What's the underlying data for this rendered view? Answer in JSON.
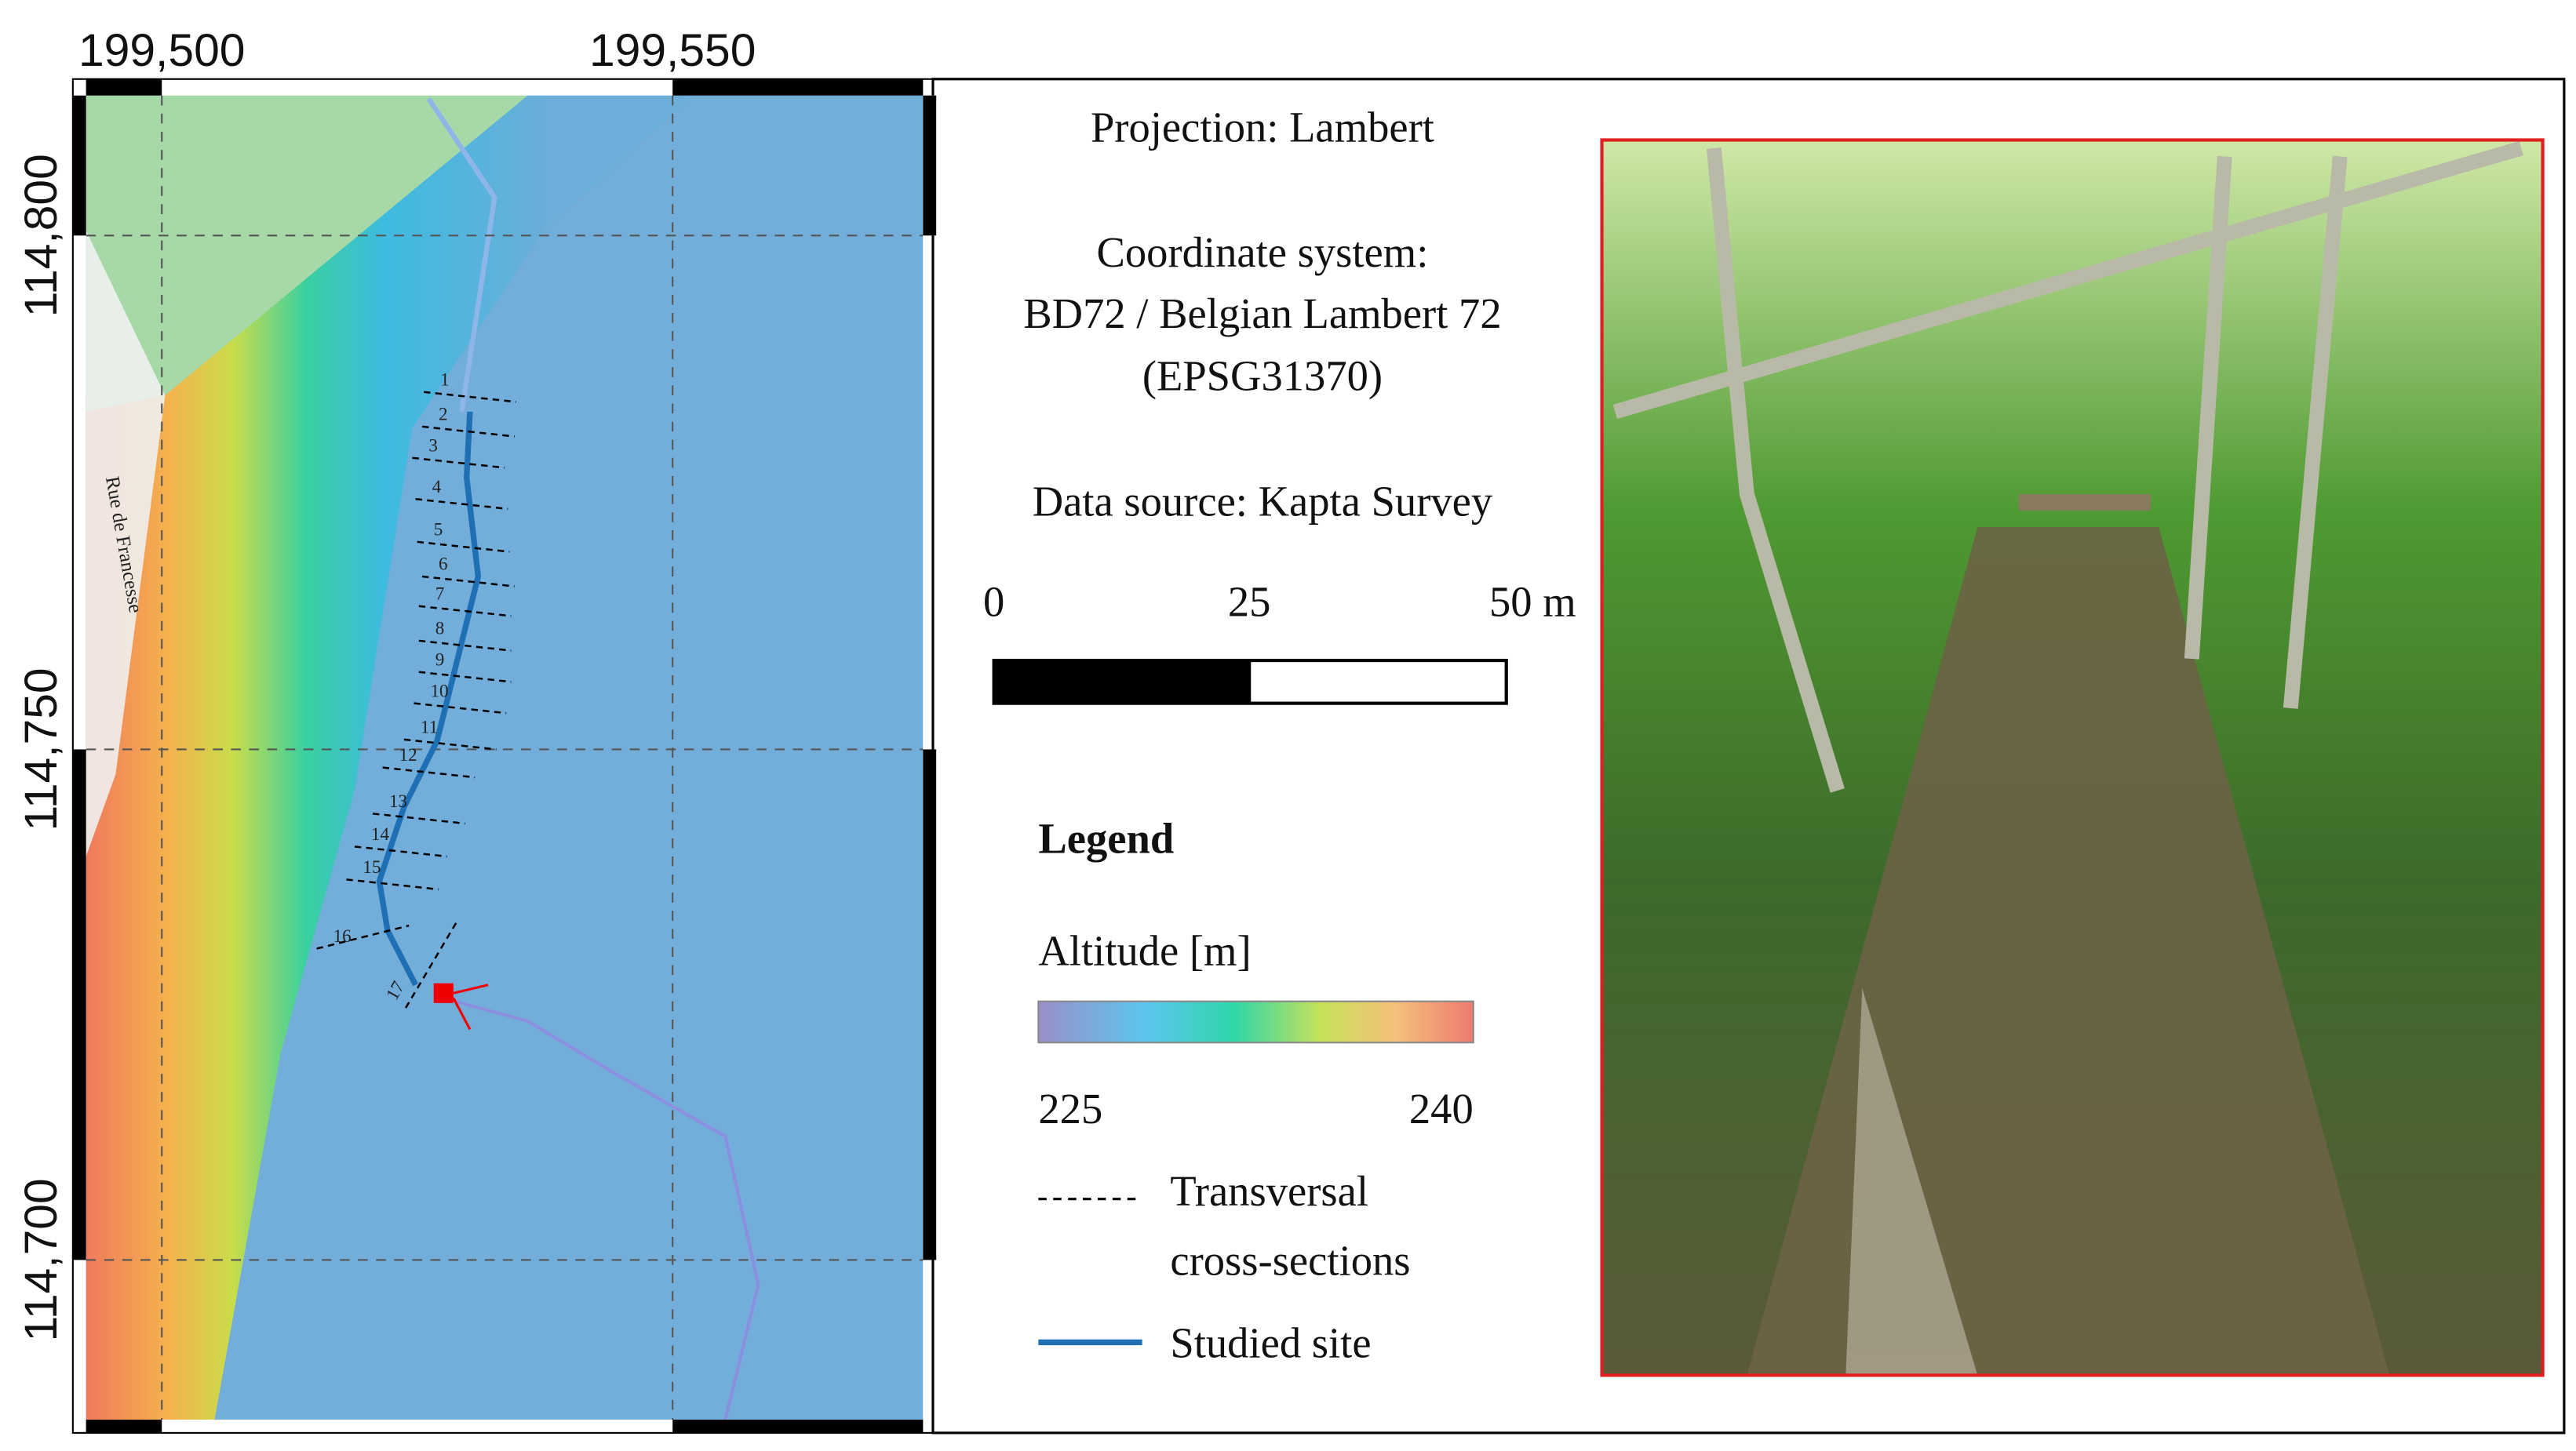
{
  "map": {
    "x_labels": [
      "199,500",
      "199,550"
    ],
    "y_labels": [
      "114,800",
      "114,750",
      "114,700"
    ],
    "street": "Rue de Francesse",
    "sections": [
      "1",
      "2",
      "3",
      "4",
      "5",
      "6",
      "7",
      "8",
      "9",
      "10",
      "11",
      "12",
      "13",
      "14",
      "15",
      "16",
      "17"
    ]
  },
  "info": {
    "projection": "Projection: Lambert",
    "coordinate_system": [
      "Coordinate system:",
      "BD72 / Belgian Lambert 72",
      "(EPSG31370)"
    ],
    "data_source": "Data source: Kapta Survey"
  },
  "scale_bar": {
    "labels": [
      0,
      25,
      "50 m"
    ]
  },
  "legend": {
    "title": "Legend",
    "altitude_title": "Altitude [m]",
    "altitude_min": 225,
    "altitude_max": 240,
    "items": [
      {
        "label": [
          "Transversal",
          "cross-sections"
        ]
      },
      {
        "label": "Studied site"
      }
    ]
  }
}
